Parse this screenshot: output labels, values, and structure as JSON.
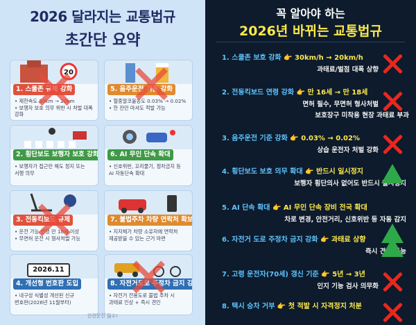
{
  "left": {
    "title": "2026 달라지는 교통법규",
    "subtitle": "초간단 요약",
    "plate_text": "2026.11",
    "footer": "안전운전 필수!",
    "cards": [
      {
        "label": "1. 스쿨존 규제 강화",
        "color": "#e0523c",
        "bullets": [
          "• 제한속도 30km → 20km",
          "• 보행자 보호 의무 위반 시 처벌 대폭",
          "  강화"
        ]
      },
      {
        "label": "5. 음주운전 기준 강화",
        "color": "#e08a2e",
        "bullets": [
          "• 혈중알코올농도 0.03% → 0.02%",
          "• 한 잔만 마셔도 적발 가능"
        ]
      },
      {
        "label": "2. 횡단보도 보행자 보호 강화",
        "color": "#3f9a46",
        "bullets": [
          "• 보행자가 접근만 해도 정지 또는",
          "  서행 의무"
        ]
      },
      {
        "label": "6. AI 무인 단속 확대",
        "color": "#3f9a46",
        "bullets": [
          "• 신호위반, 꼬리물기, 정차금지 등",
          "  AI 자동단속 확대"
        ]
      },
      {
        "label": "3. 전동킥보드 규제",
        "color": "#e0523c",
        "bullets": [
          "• 운전 가능 연령 만 18세 이상",
          "• 무면허 운전 시 형사처벌 가능"
        ]
      },
      {
        "label": "7. 불법주차 차량 연락처 확보",
        "color": "#e08a2e",
        "bullets": [
          "• 지자체가 차량 소유자에 연락처",
          "  제공받을 수 있는 근거 마련"
        ]
      },
      {
        "label": "4. 개선형 번호판 도입",
        "color": "#2f6fb5",
        "bullets": [
          "• 내구성 식별성 개선된 신규",
          "  번호판(2026년 11월부터)"
        ]
      },
      {
        "label": "8. 자전거도로 주정차 금지 강화",
        "color": "#2f6fb5",
        "bullets": [
          "• 자전거 전용도로 불법 주차 시",
          "  과태료 인상 + 즉시 견인"
        ]
      }
    ]
  },
  "right": {
    "title1": "꼭 알아야 하는",
    "title2": "2026년 바뀌는 교통법규",
    "items": [
      {
        "num": "1. ",
        "head": "스쿨존 보호 강화",
        "arrow": " 👉 ",
        "value": "30km/h → 20km/h",
        "sub": "과태료/벌점 대폭 상향",
        "mark": "x"
      },
      {
        "num": "2. ",
        "head": "전동킥보드 연령 강화",
        "arrow": " 👉 ",
        "value": "만 16세 → 만 18세",
        "sub": "면허 필수, 무면허 형사처벌",
        "sub2": "보호장구 미착용 현장 과태료 부과",
        "mark": "x"
      },
      {
        "num": "3. ",
        "head": "음주운전 기준 강화",
        "arrow": " 👉 ",
        "value": "0.03% → 0.02%",
        "sub": "상습 운전자 처벌 강화",
        "mark": "x"
      },
      {
        "num": "4. ",
        "head": "횡단보도 보호 의무 확대",
        "arrow": " 👉 ",
        "value": "반드시 일시정지",
        "sub": "보행자 횡단의사 없어도 반드시 일시정지",
        "mark": "tri"
      },
      {
        "num": "5. ",
        "head": "AI 단속 확대",
        "arrow": " 👉 ",
        "value": "AI 무인 단속 장비 전국 확대",
        "sub": "차로 변경, 안전거리, 신호위반 등 자동 감지",
        "mark": "tri"
      },
      {
        "num": "6. ",
        "head": "자전거 도로 주정차 금지 강화",
        "arrow": " 👉 ",
        "value": "과태료 상향",
        "sub": "즉시 견인 가능",
        "mark": "tri"
      },
      {
        "num": "7. ",
        "head": "고령 운전자(70세) 갱신 기준",
        "arrow": " 👉 ",
        "value": "5년 → 3년",
        "sub": "인지 기능 검사 의무화",
        "mark": "x"
      },
      {
        "num": "8. ",
        "head": "택시 승차 거부",
        "arrow": " 👉 ",
        "value": "첫 적발 시 자격정지 처분",
        "mark": "x"
      }
    ]
  }
}
